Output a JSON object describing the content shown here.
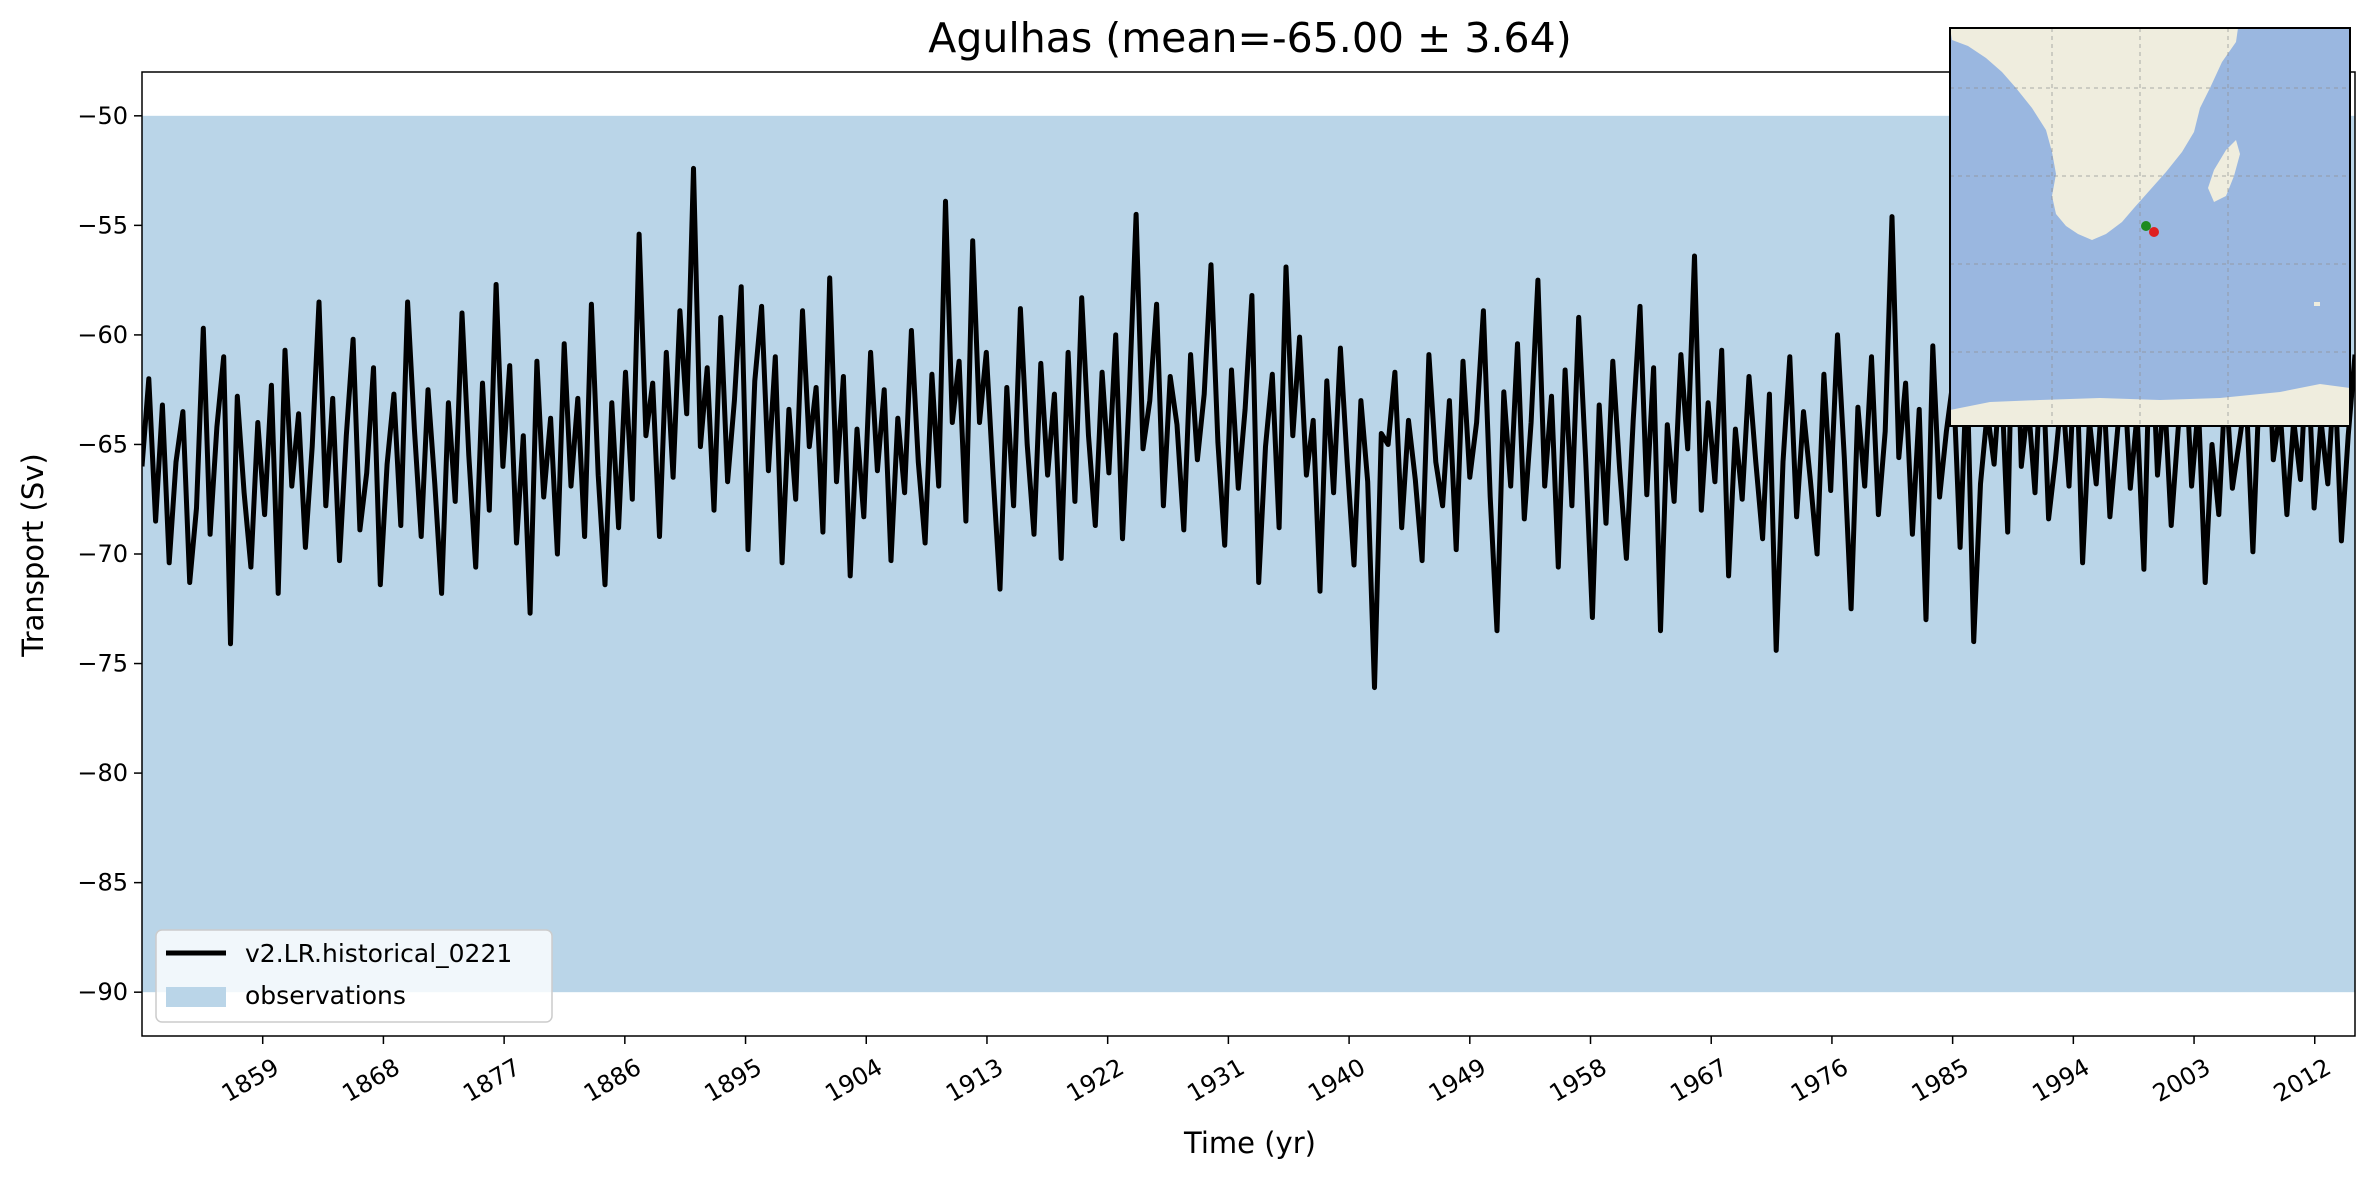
{
  "chart_data": {
    "type": "line",
    "title": "Agulhas (mean=-65.00 ± 3.64)",
    "xlabel": "Time (yr)",
    "ylabel": "Transport (Sv)",
    "xlim": [
      1850,
      2015
    ],
    "ylim": [
      -92,
      -48
    ],
    "xticks": [
      1859,
      1868,
      1877,
      1886,
      1895,
      1904,
      1913,
      1922,
      1931,
      1940,
      1949,
      1958,
      1967,
      1976,
      1985,
      1994,
      2003,
      2012
    ],
    "yticks": [
      -50,
      -55,
      -60,
      -65,
      -70,
      -75,
      -80,
      -85,
      -90
    ],
    "xtick_labels": [
      "1859",
      "1868",
      "1877",
      "1886",
      "1895",
      "1904",
      "1913",
      "1922",
      "1931",
      "1940",
      "1949",
      "1958",
      "1967",
      "1976",
      "1985",
      "1994",
      "2003",
      "2012"
    ],
    "ytick_labels": [
      "−50",
      "−55",
      "−60",
      "−65",
      "−70",
      "−75",
      "−80",
      "−85",
      "−90"
    ],
    "grid": false,
    "legend_position": "lower-left",
    "observations_band": {
      "name": "observations",
      "ymin": -90,
      "ymax": -50,
      "color": "#bad5e8"
    },
    "series": [
      {
        "name": "v2.LR.historical_0221",
        "color": "#000000",
        "x_start": 1850,
        "x_end": 2015,
        "values": [
          -66.0,
          -62.0,
          -68.5,
          -63.2,
          -70.4,
          -65.8,
          -63.5,
          -71.3,
          -67.9,
          -59.7,
          -69.1,
          -64.2,
          -61.0,
          -74.1,
          -62.8,
          -67.2,
          -70.6,
          -64.0,
          -68.2,
          -62.3,
          -71.8,
          -60.7,
          -66.9,
          -63.6,
          -69.7,
          -65.1,
          -58.5,
          -67.8,
          -62.9,
          -70.3,
          -64.6,
          -60.2,
          -68.9,
          -66.3,
          -61.5,
          -71.4,
          -65.9,
          -62.7,
          -68.7,
          -58.5,
          -64.3,
          -69.2,
          -62.5,
          -66.8,
          -71.8,
          -63.1,
          -67.6,
          -59.0,
          -65.5,
          -70.6,
          -62.2,
          -68.0,
          -57.7,
          -66.0,
          -61.4,
          -69.5,
          -64.6,
          -72.7,
          -61.2,
          -67.4,
          -63.8,
          -70.0,
          -60.4,
          -66.9,
          -62.9,
          -69.2,
          -58.6,
          -66.4,
          -71.4,
          -63.1,
          -68.8,
          -61.7,
          -67.5,
          -55.4,
          -64.6,
          -62.2,
          -69.2,
          -60.8,
          -66.5,
          -58.9,
          -63.6,
          -52.4,
          -65.1,
          -61.5,
          -68.0,
          -59.2,
          -66.7,
          -63.0,
          -57.8,
          -69.8,
          -62.1,
          -58.7,
          -66.2,
          -61.0,
          -70.4,
          -63.4,
          -67.5,
          -58.9,
          -65.1,
          -62.4,
          -69.0,
          -57.4,
          -66.7,
          -61.9,
          -71.0,
          -64.3,
          -68.3,
          -60.8,
          -66.2,
          -62.5,
          -70.3,
          -63.8,
          -67.2,
          -59.8,
          -65.8,
          -69.5,
          -61.8,
          -66.9,
          -53.9,
          -64.0,
          -61.2,
          -68.5,
          -55.7,
          -64.0,
          -60.8,
          -66.5,
          -71.6,
          -62.4,
          -67.8,
          -58.8,
          -65.0,
          -69.1,
          -61.3,
          -66.4,
          -62.7,
          -70.2,
          -60.8,
          -67.6,
          -58.3,
          -64.6,
          -68.7,
          -61.7,
          -66.3,
          -60.0,
          -69.3,
          -62.7,
          -54.5,
          -65.2,
          -63.0,
          -58.6,
          -67.8,
          -61.9,
          -64.1,
          -68.9,
          -60.9,
          -65.7,
          -62.7,
          -56.8,
          -64.9,
          -69.6,
          -61.6,
          -67.0,
          -63.4,
          -58.2,
          -71.3,
          -65.1,
          -61.8,
          -68.8,
          -56.9,
          -64.6,
          -60.1,
          -66.4,
          -63.9,
          -71.7,
          -62.1,
          -67.2,
          -60.6,
          -65.8,
          -70.5,
          -63.0,
          -66.7,
          -76.1,
          -64.5,
          -65.0,
          -61.7,
          -68.8,
          -63.9,
          -66.6,
          -70.3,
          -60.9,
          -65.8,
          -67.8,
          -63.0,
          -69.8,
          -61.2,
          -66.5,
          -64.0,
          -58.9,
          -67.4,
          -73.5,
          -62.6,
          -66.9,
          -60.4,
          -68.4,
          -64.0,
          -57.5,
          -66.9,
          -62.8,
          -70.6,
          -61.6,
          -67.8,
          -59.2,
          -65.6,
          -72.9,
          -63.2,
          -68.6,
          -61.2,
          -66.1,
          -70.2,
          -63.9,
          -58.7,
          -67.3,
          -61.5,
          -73.5,
          -64.1,
          -67.6,
          -60.9,
          -65.2,
          -56.4,
          -68.0,
          -63.1,
          -66.7,
          -60.7,
          -71.0,
          -64.3,
          -67.5,
          -61.9,
          -65.8,
          -69.3,
          -62.7,
          -74.4,
          -65.8,
          -61.0,
          -68.3,
          -63.5,
          -66.6,
          -70.0,
          -61.8,
          -67.1,
          -60.0,
          -65.6,
          -72.5,
          -63.3,
          -66.9,
          -61.0,
          -68.2,
          -64.4,
          -54.6,
          -65.6,
          -62.2,
          -69.1,
          -63.4,
          -73.0,
          -60.5,
          -67.4,
          -64.4,
          -62.0,
          -69.7,
          -61.4,
          -74.0,
          -66.8,
          -63.5,
          -65.9,
          -61.4,
          -69.0,
          -54.7,
          -66.0,
          -63.1,
          -67.2,
          -60.2,
          -68.4,
          -65.7,
          -62.4,
          -66.9,
          -60.1,
          -70.4,
          -63.9,
          -66.8,
          -62.0,
          -68.3,
          -64.8,
          -61.2,
          -67.0,
          -63.6,
          -70.7,
          -58.8,
          -66.4,
          -62.6,
          -68.7,
          -64.4,
          -60.4,
          -66.9,
          -63.2,
          -71.3,
          -65.0,
          -68.2,
          -62.0,
          -67.0,
          -64.9,
          -62.7,
          -69.9,
          -61.9,
          -58.1,
          -65.7,
          -63.4,
          -68.2,
          -63.9,
          -66.6,
          -60.4,
          -67.9,
          -63.9,
          -66.8,
          -61.7,
          -69.4,
          -64.6,
          -60.9
        ]
      }
    ]
  },
  "map_inset": {
    "land_color": "#efedde",
    "ocean_color": "#9ab7e0",
    "markers": [
      {
        "name": "start",
        "color": "#1e8a1e"
      },
      {
        "name": "end",
        "color": "#e02020"
      }
    ]
  }
}
